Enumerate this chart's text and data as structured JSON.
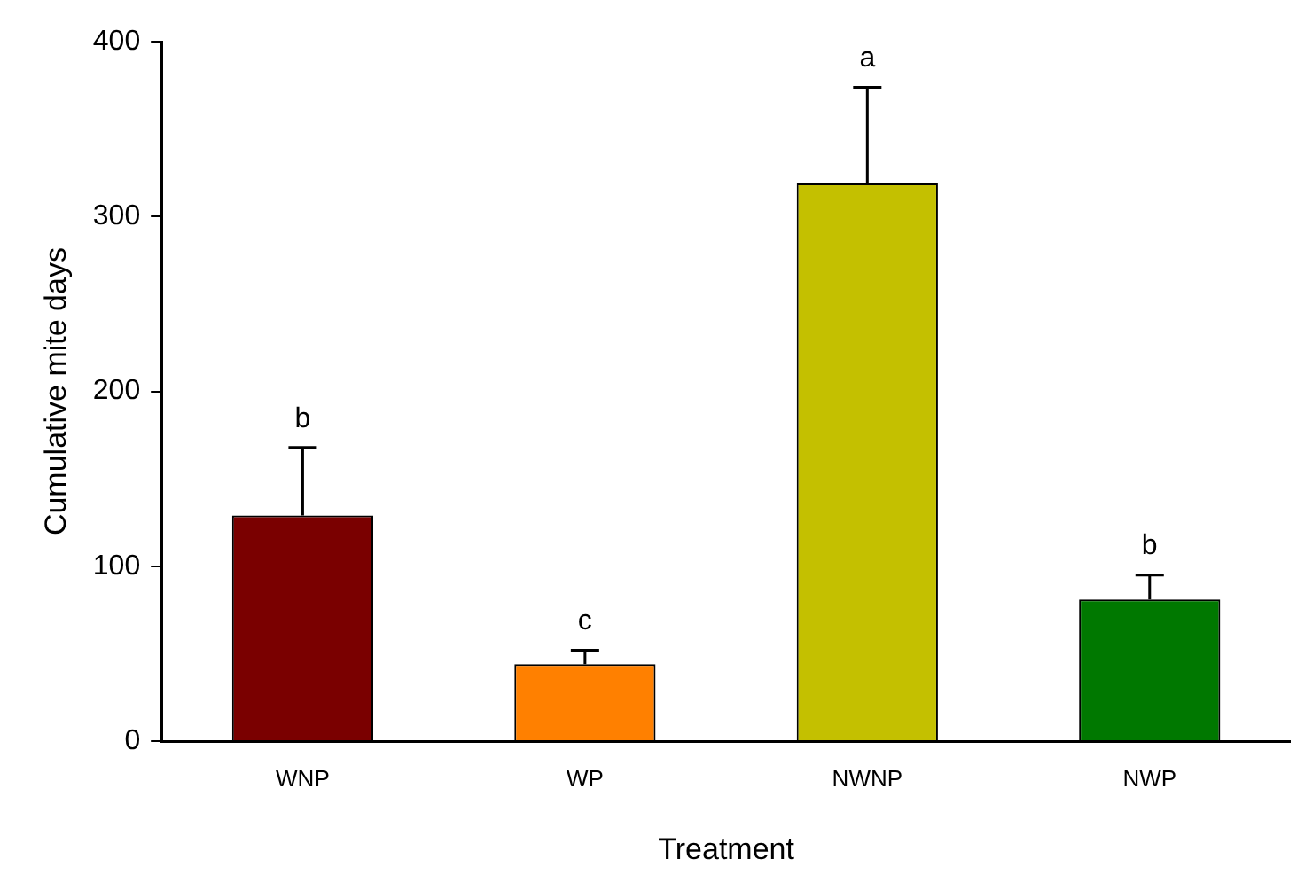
{
  "chart_data": {
    "type": "bar",
    "xlabel": "Treatment",
    "ylabel": "Cumulative mite days",
    "categories": [
      "WNP",
      "WP",
      "NWNP",
      "NWP"
    ],
    "values": [
      129,
      44,
      319,
      81
    ],
    "colors": [
      "#7a0000",
      "#ff8000",
      "#c4c000",
      "#007800"
    ],
    "errors": [
      [
        129,
        168
      ],
      [
        44,
        52
      ],
      [
        319,
        374
      ],
      [
        81,
        95
      ]
    ],
    "ylim": [
      0,
      400
    ],
    "yticks": [
      0,
      100,
      200,
      300,
      400
    ],
    "grid": false,
    "legend": false,
    "annotations": [
      {
        "text": "b",
        "x": "WNP",
        "y": 168
      },
      {
        "text": "c",
        "x": "WP",
        "y": 52
      },
      {
        "text": "a",
        "x": "NWNP",
        "y": 374
      },
      {
        "text": "b",
        "x": "NWP",
        "y": 95
      }
    ]
  }
}
